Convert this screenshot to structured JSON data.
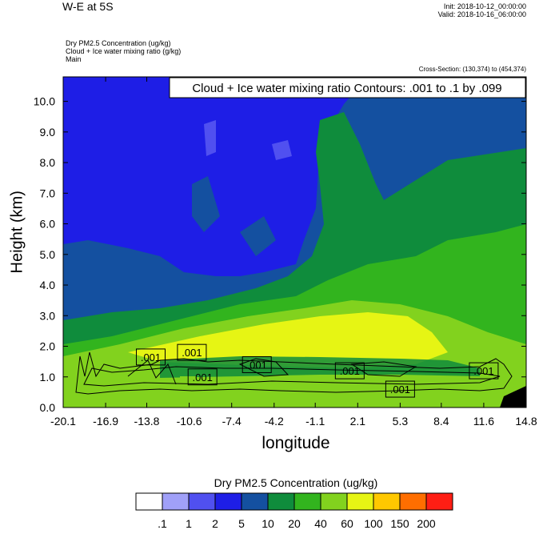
{
  "header": {
    "title": "W-E at 5S",
    "init": "Init: 2018-10-12_00:00:00",
    "valid": "Valid: 2018-10-16_06:00:00",
    "fields": [
      "Dry PM2.5 Concentration   (ug/kg)",
      "Cloud + Ice water mixing ratio   (g/kg)",
      "Main"
    ],
    "cross_section": "Cross-Section: (130,374) to (454,374)"
  },
  "chart_data": {
    "type": "heatmap",
    "title": "Cloud + Ice water mixing ratio Contours: .001 to .1 by .099",
    "xlabel": "longitude",
    "ylabel": "Height (km)",
    "xlim": [
      -20.1,
      14.8
    ],
    "ylim": [
      0,
      10.8
    ],
    "x_ticks": [
      "-20.1",
      "-16.9",
      "-13.8",
      "-10.6",
      "-7.4",
      "-4.2",
      "-1.1",
      "2.1",
      "5.3",
      "8.4",
      "11.6",
      "14.8"
    ],
    "y_ticks": [
      "0.0",
      "1.0",
      "2.0",
      "3.0",
      "4.0",
      "5.0",
      "6.0",
      "7.0",
      "8.0",
      "9.0",
      "10.0"
    ],
    "contour_labels": [
      {
        "text": ".001",
        "x": -13.5,
        "y": 1.65
      },
      {
        "text": ".001",
        "x": -10.4,
        "y": 1.8
      },
      {
        "text": ".001",
        "x": -9.6,
        "y": 1.0
      },
      {
        "text": ".001",
        "x": -5.5,
        "y": 1.4
      },
      {
        "text": ".001",
        "x": 1.5,
        "y": 1.2
      },
      {
        "text": ".001",
        "x": 5.3,
        "y": 0.6
      },
      {
        "text": ".001",
        "x": 11.6,
        "y": 1.2
      }
    ],
    "colorbar": {
      "label": "Dry PM2.5 Concentration  (ug/kg)",
      "levels": [
        ".1",
        "1",
        "2",
        "5",
        "10",
        "20",
        "40",
        "60",
        "100",
        "150",
        "200"
      ],
      "colors": [
        "#ffffff",
        "#a0a0f8",
        "#5050f0",
        "#1e1ee6",
        "#1450a0",
        "#0f8c3c",
        "#32b41e",
        "#82d21e",
        "#e6f514",
        "#ffc800",
        "#ff6e00",
        "#ff1e14"
      ]
    }
  }
}
